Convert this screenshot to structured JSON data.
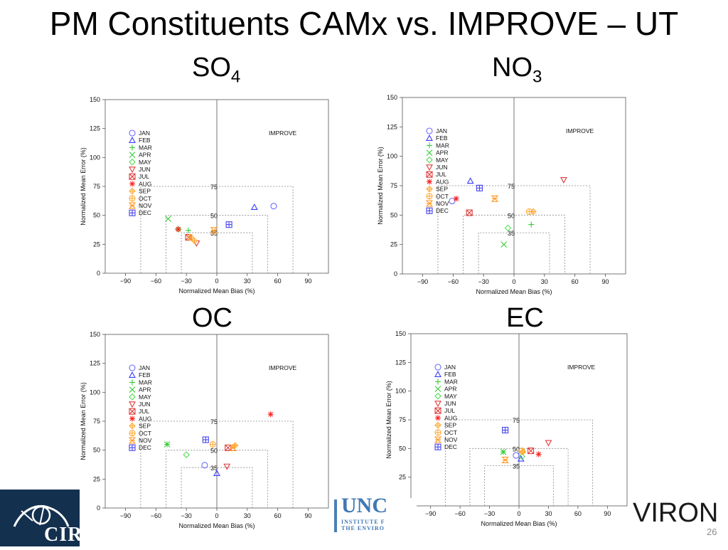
{
  "title": "PM Constituents CAMx vs. IMPROVE – UT",
  "page_number": "26",
  "footer": {
    "logo_left_text": "CIRA",
    "logo_mid_text": "UNC",
    "logo_mid_sub1": "INSTITUTE F",
    "logo_mid_sub2": "THE ENVIRO",
    "logo_right_text": "VIRON"
  },
  "months": [
    "JAN",
    "FEB",
    "MAR",
    "APR",
    "MAY",
    "JUN",
    "JUL",
    "AUG",
    "SEP",
    "OCT",
    "NOV",
    "DEC"
  ],
  "month_colors": [
    "#6a6aff",
    "#3b3bff",
    "#33cc33",
    "#33cc33",
    "#55dd55",
    "#e03c3c",
    "#e03c3c",
    "#ff2020",
    "#ffaa33",
    "#ffaa33",
    "#ff9922",
    "#4444ee"
  ],
  "month_symbols": [
    "circle",
    "triangle-up",
    "plus",
    "x",
    "diamond",
    "triangle-down",
    "boxed-x",
    "asterisk",
    "diamond-plus",
    "circle-plus",
    "bowtie",
    "boxed-plus"
  ],
  "common": {
    "xlabel": "Normalized Mean Bias (%)",
    "ylabel": "Normalized Mean Error (%)",
    "benchmark_label": "IMPROVE",
    "xlim": [
      -110,
      110
    ],
    "ylim": [
      0,
      150
    ],
    "xticks": [
      -90,
      -60,
      -30,
      0,
      30,
      60,
      90
    ],
    "yticks": [
      0,
      25,
      50,
      75,
      100,
      125,
      150
    ],
    "goal_boxes": [
      75,
      50,
      35
    ],
    "goal_box_labels": [
      "75",
      "50",
      "35"
    ]
  },
  "chart_data": [
    {
      "type": "scatter",
      "subtitle": "SO",
      "subtitle_sub": "4",
      "points": [
        {
          "month": "JAN",
          "x": 56,
          "y": 58
        },
        {
          "month": "FEB",
          "x": 37,
          "y": 57
        },
        {
          "month": "MAR",
          "x": -28,
          "y": 37
        },
        {
          "month": "APR",
          "x": -48,
          "y": 47
        },
        {
          "month": "MAY",
          "x": -38,
          "y": 38
        },
        {
          "month": "JUN",
          "x": -20,
          "y": 26
        },
        {
          "month": "JUL",
          "x": -28,
          "y": 31
        },
        {
          "month": "AUG",
          "x": -38,
          "y": 38
        },
        {
          "month": "SEP",
          "x": -22,
          "y": 28
        },
        {
          "month": "OCT",
          "x": -26,
          "y": 31
        },
        {
          "month": "NOV",
          "x": -3,
          "y": 37
        },
        {
          "month": "DEC",
          "x": 12,
          "y": 42
        }
      ]
    },
    {
      "type": "scatter",
      "subtitle": "NO",
      "subtitle_sub": "3",
      "points": [
        {
          "month": "JAN",
          "x": -61,
          "y": 62
        },
        {
          "month": "FEB",
          "x": -43,
          "y": 79
        },
        {
          "month": "MAR",
          "x": 17,
          "y": 42
        },
        {
          "month": "APR",
          "x": -10,
          "y": 25
        },
        {
          "month": "MAY",
          "x": -6,
          "y": 39
        },
        {
          "month": "JUN",
          "x": 49,
          "y": 80
        },
        {
          "month": "JUL",
          "x": -44,
          "y": 52
        },
        {
          "month": "AUG",
          "x": -57,
          "y": 64
        },
        {
          "month": "SEP",
          "x": 19,
          "y": 53
        },
        {
          "month": "OCT",
          "x": 15,
          "y": 53
        },
        {
          "month": "NOV",
          "x": -19,
          "y": 64
        },
        {
          "month": "DEC",
          "x": -34,
          "y": 73
        }
      ]
    },
    {
      "type": "scatter",
      "subtitle": "OC",
      "subtitle_sub": "",
      "points": [
        {
          "month": "JAN",
          "x": -12,
          "y": 37
        },
        {
          "month": "FEB",
          "x": 0,
          "y": 30
        },
        {
          "month": "MAR",
          "x": -49,
          "y": 55
        },
        {
          "month": "APR",
          "x": -49,
          "y": 55
        },
        {
          "month": "MAY",
          "x": -30,
          "y": 46
        },
        {
          "month": "JUN",
          "x": 10,
          "y": 36
        },
        {
          "month": "JUL",
          "x": 11,
          "y": 52
        },
        {
          "month": "AUG",
          "x": 53,
          "y": 81
        },
        {
          "month": "SEP",
          "x": 18,
          "y": 54
        },
        {
          "month": "OCT",
          "x": -4,
          "y": 55
        },
        {
          "month": "NOV",
          "x": 16,
          "y": 52
        },
        {
          "month": "DEC",
          "x": -11,
          "y": 59
        }
      ]
    },
    {
      "type": "scatter",
      "subtitle": "EC",
      "subtitle_sub": "",
      "points": [
        {
          "month": "JAN",
          "x": -3,
          "y": 44
        },
        {
          "month": "FEB",
          "x": 2,
          "y": 41
        },
        {
          "month": "MAR",
          "x": -16,
          "y": 47
        },
        {
          "month": "APR",
          "x": -16,
          "y": 47
        },
        {
          "month": "MAY",
          "x": 3,
          "y": 43
        },
        {
          "month": "JUN",
          "x": 30,
          "y": 55
        },
        {
          "month": "JUL",
          "x": 12,
          "y": 48
        },
        {
          "month": "AUG",
          "x": 20,
          "y": 45
        },
        {
          "month": "SEP",
          "x": 4,
          "y": 47
        },
        {
          "month": "OCT",
          "x": 3,
          "y": 48
        },
        {
          "month": "NOV",
          "x": -14,
          "y": 40
        },
        {
          "month": "DEC",
          "x": -14,
          "y": 66
        }
      ]
    }
  ]
}
